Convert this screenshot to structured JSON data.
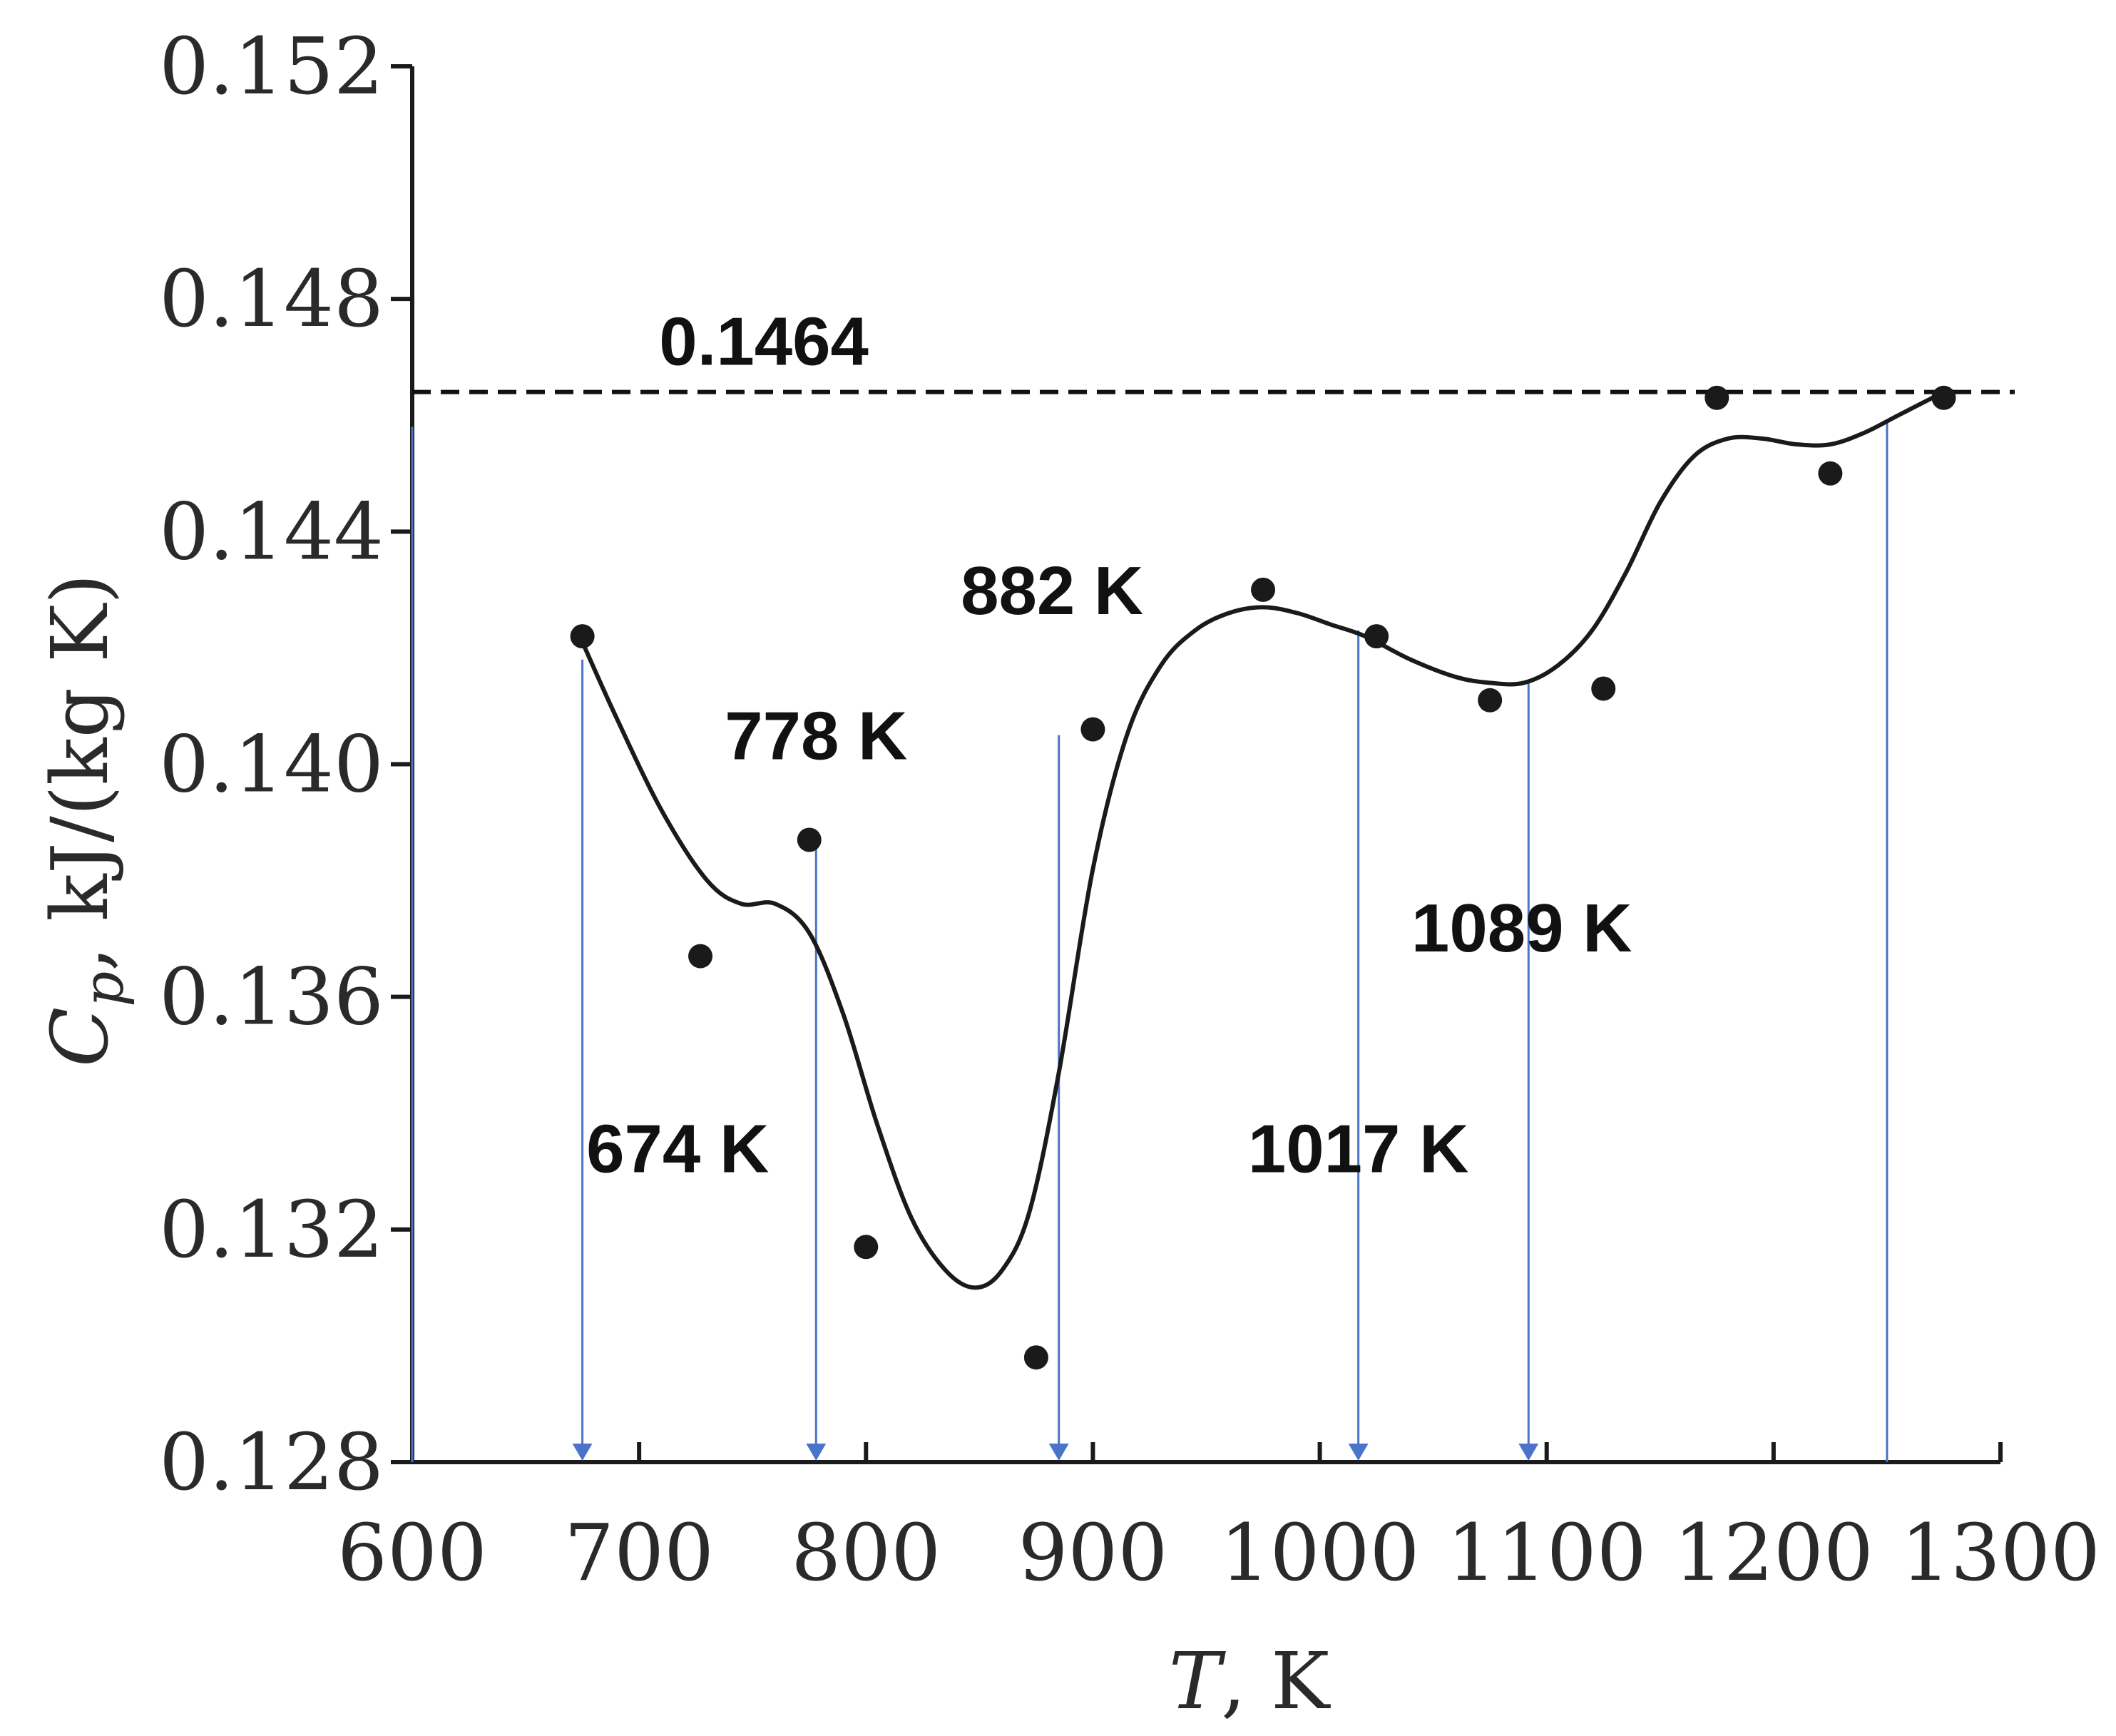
{
  "chart_data": {
    "type": "scatter",
    "xlabel": "T, K",
    "ylabel": "Cp, kJ/(kg K)",
    "ylabel_parts": {
      "symbol": "C",
      "subscript": "p",
      "units": ", kJ/(kg K)"
    },
    "xlim": [
      600,
      1300
    ],
    "ylim": [
      0.128,
      0.152
    ],
    "x_ticks": [
      600,
      700,
      800,
      900,
      1000,
      1100,
      1200,
      1300
    ],
    "x_tick_labels": [
      "600",
      "700",
      "800",
      "900",
      "1000",
      "1100",
      "1200",
      "1300"
    ],
    "y_ticks": [
      0.128,
      0.132,
      0.136,
      0.14,
      0.144,
      0.148,
      0.152
    ],
    "y_tick_labels": [
      "0.128",
      "0.132",
      "0.136",
      "0.140",
      "0.144",
      "0.148",
      "0.152"
    ],
    "grid": false,
    "points": [
      {
        "x": 675,
        "y": 0.1422
      },
      {
        "x": 727,
        "y": 0.1367
      },
      {
        "x": 775,
        "y": 0.1387
      },
      {
        "x": 800,
        "y": 0.1317
      },
      {
        "x": 875,
        "y": 0.1298
      },
      {
        "x": 900,
        "y": 0.1406
      },
      {
        "x": 975,
        "y": 0.143
      },
      {
        "x": 1025,
        "y": 0.1422
      },
      {
        "x": 1075,
        "y": 0.1411
      },
      {
        "x": 1125,
        "y": 0.1413
      },
      {
        "x": 1175,
        "y": 0.1463
      },
      {
        "x": 1225,
        "y": 0.145
      },
      {
        "x": 1275,
        "y": 0.1463
      }
    ],
    "fit_curve": {
      "x": [
        675,
        690,
        710,
        730,
        745,
        760,
        775,
        790,
        805,
        820,
        835,
        848,
        860,
        872,
        885,
        900,
        915,
        930,
        945,
        960,
        975,
        990,
        1005,
        1020,
        1040,
        1060,
        1075,
        1090,
        1105,
        1120,
        1135,
        1150,
        1165,
        1180,
        1195,
        1210,
        1225,
        1240,
        1255,
        1275
      ],
      "y": [
        0.1421,
        0.1408,
        0.1392,
        0.138,
        0.1376,
        0.1376,
        0.1371,
        0.1357,
        0.1338,
        0.1322,
        0.1313,
        0.131,
        0.1313,
        0.1323,
        0.1347,
        0.1382,
        0.1405,
        0.1417,
        0.1423,
        0.1426,
        0.1427,
        0.1426,
        0.1424,
        0.1422,
        0.1418,
        0.1415,
        0.1414,
        0.1414,
        0.1417,
        0.1423,
        0.1433,
        0.1445,
        0.1453,
        0.1456,
        0.1456,
        0.1455,
        0.1455,
        0.1457,
        0.146,
        0.1464
      ]
    },
    "reference_line": {
      "y": 0.1464,
      "label": "0.1464"
    },
    "annotations": [
      {
        "label": "674 K",
        "arrow_x": 675,
        "arrow_top_y": 0.1418,
        "text_x": 717,
        "text_y": 0.1334
      },
      {
        "label": "778 K",
        "arrow_x": 778,
        "arrow_top_y": 0.1386,
        "text_x": 778,
        "text_y": 0.1405
      },
      {
        "label": "882 K",
        "arrow_x": 885,
        "arrow_top_y": 0.1405,
        "text_x": 882,
        "text_y": 0.143
      },
      {
        "label": "1017 K",
        "arrow_x": 1017,
        "arrow_top_y": 0.1423,
        "text_x": 1017,
        "text_y": 0.1334
      },
      {
        "label": "1089 K",
        "arrow_x": 1092,
        "arrow_top_y": 0.1414,
        "text_x": 1089,
        "text_y": 0.1372
      }
    ],
    "extra_guides": [
      {
        "x": 1250,
        "y_top": 0.1459
      },
      {
        "x": 600,
        "y_top": 0.1458
      }
    ],
    "colors": {
      "points": "#1a1a1a",
      "curve": "#1a1a1a",
      "reference_line": "#111111",
      "guides": "#4a74c9",
      "axes": "#1a1a1a"
    }
  }
}
